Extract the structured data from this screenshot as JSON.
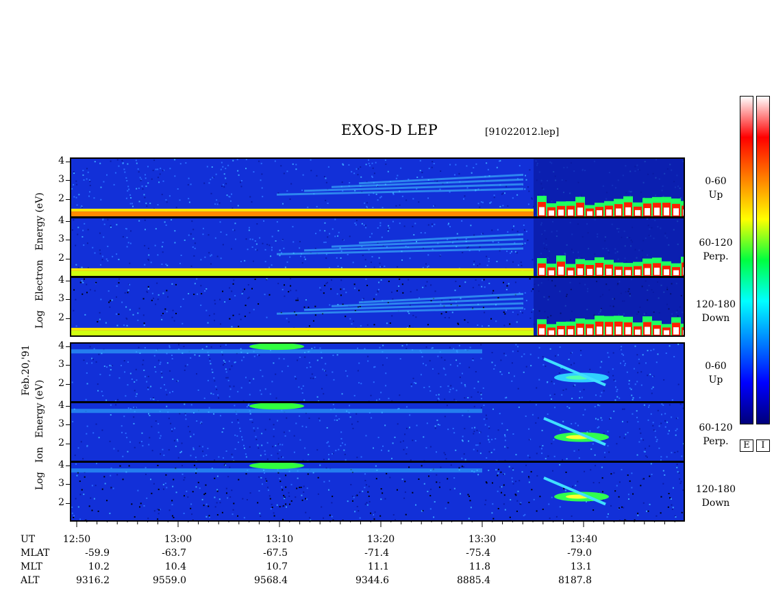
{
  "header": {
    "title": "EXOS-D LEP",
    "file": "[91022012.lep]"
  },
  "date_label": "Feb.20,'91",
  "electron_group": {
    "labels": [
      "Log",
      "Electron",
      "Energy",
      "(eV)"
    ],
    "channels": [
      {
        "angle": "0-60",
        "dir": "Up"
      },
      {
        "angle": "60-120",
        "dir": "Perp."
      },
      {
        "angle": "120-180",
        "dir": "Down"
      }
    ]
  },
  "ion_group": {
    "labels": [
      "Log",
      "Ion",
      "Energy",
      "(eV)"
    ],
    "channels": [
      {
        "angle": "0-60",
        "dir": "Up"
      },
      {
        "angle": "60-120",
        "dir": "Perp."
      },
      {
        "angle": "120-180",
        "dir": "Down"
      }
    ]
  },
  "colorbars": [
    {
      "label": "E",
      "colors": [
        "#00007a",
        "#0000ff",
        "#0080ff",
        "#00ffff",
        "#00ff40",
        "#ffff00",
        "#ff8000",
        "#ff0000",
        "#ffffff"
      ]
    },
    {
      "label": "I",
      "colors": [
        "#00007a",
        "#0000ff",
        "#0080ff",
        "#00ffff",
        "#00ff40",
        "#ffff00",
        "#ff8000",
        "#ff0000",
        "#ffffff"
      ]
    }
  ],
  "ephemeris": {
    "row_labels": [
      "UT",
      "MLAT",
      "MLT",
      "ALT"
    ],
    "columns": [
      {
        "UT": "12:50",
        "MLAT": "-59.9",
        "MLT": "10.2",
        "ALT": "9316.2"
      },
      {
        "UT": "13:00",
        "MLAT": "-63.7",
        "MLT": "10.4",
        "ALT": "9559.0"
      },
      {
        "UT": "13:10",
        "MLAT": "-67.5",
        "MLT": "10.7",
        "ALT": "9568.4"
      },
      {
        "UT": "13:20",
        "MLAT": "-71.4",
        "MLT": "11.1",
        "ALT": "9344.6"
      },
      {
        "UT": "13:30",
        "MLAT": "-75.4",
        "MLT": "11.8",
        "ALT": "8885.4"
      },
      {
        "UT": "13:40",
        "MLAT": "-79.0",
        "MLT": "13.1",
        "ALT": "8187.8"
      }
    ]
  },
  "chart_data": {
    "type": "heatmap",
    "title": "EXOS-D LEP",
    "x_axis": {
      "label": "UT",
      "ticks": [
        "12:50",
        "13:00",
        "13:10",
        "13:20",
        "13:30",
        "13:40"
      ]
    },
    "y_axis": {
      "label": "Log Energy (eV)",
      "ticks": [
        2,
        3,
        4
      ],
      "range": [
        1,
        4.2
      ]
    },
    "panels": [
      {
        "species": "Electron",
        "pitch_angle": "0-60",
        "direction": "Up"
      },
      {
        "species": "Electron",
        "pitch_angle": "60-120",
        "direction": "Perp."
      },
      {
        "species": "Electron",
        "pitch_angle": "120-180",
        "direction": "Down"
      },
      {
        "species": "Ion",
        "pitch_angle": "0-60",
        "direction": "Up"
      },
      {
        "species": "Ion",
        "pitch_angle": "60-120",
        "direction": "Perp."
      },
      {
        "species": "Ion",
        "pitch_angle": "120-180",
        "direction": "Down"
      }
    ]
  }
}
